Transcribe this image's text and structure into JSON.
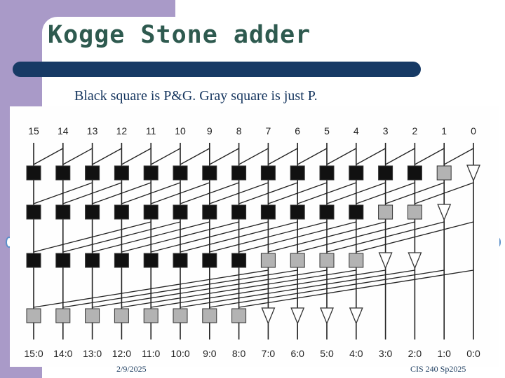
{
  "title": "Kogge Stone adder",
  "subtitle": "Black square is P&G. Gray square is just P.",
  "footer": {
    "date": "2/9/2025",
    "course": "CIS 240 Sp2025"
  },
  "colors": {
    "sidebar": "#a99ac8",
    "title": "#2e5a4f",
    "bar": "#173a65",
    "text": "#15355e",
    "black_cell": "#111111",
    "gray_cell": "#b3b3b3"
  },
  "diagram": {
    "input_labels": [
      "15",
      "14",
      "13",
      "12",
      "11",
      "10",
      "9",
      "8",
      "7",
      "6",
      "5",
      "4",
      "3",
      "2",
      "1",
      "0"
    ],
    "output_labels": [
      "15:0",
      "14:0",
      "13:0",
      "12:0",
      "11:0",
      "10:0",
      "9:0",
      "8:0",
      "7:0",
      "6:0",
      "5:0",
      "4:0",
      "3:0",
      "2:0",
      "1:0",
      "0:0"
    ],
    "stages": [
      {
        "distance": 1,
        "cells": [
          "black",
          "black",
          "black",
          "black",
          "black",
          "black",
          "black",
          "black",
          "black",
          "black",
          "black",
          "black",
          "black",
          "black",
          "gray",
          "buffer"
        ]
      },
      {
        "distance": 2,
        "cells": [
          "black",
          "black",
          "black",
          "black",
          "black",
          "black",
          "black",
          "black",
          "black",
          "black",
          "black",
          "black",
          "gray",
          "gray",
          "buffer",
          "none"
        ]
      },
      {
        "distance": 4,
        "cells": [
          "black",
          "black",
          "black",
          "black",
          "black",
          "black",
          "black",
          "black",
          "gray",
          "gray",
          "gray",
          "gray",
          "buffer",
          "buffer",
          "none",
          "none"
        ]
      },
      {
        "distance": 8,
        "cells": [
          "gray",
          "gray",
          "gray",
          "gray",
          "gray",
          "gray",
          "gray",
          "gray",
          "buffer",
          "buffer",
          "buffer",
          "buffer",
          "none",
          "none",
          "none",
          "none"
        ]
      }
    ]
  }
}
